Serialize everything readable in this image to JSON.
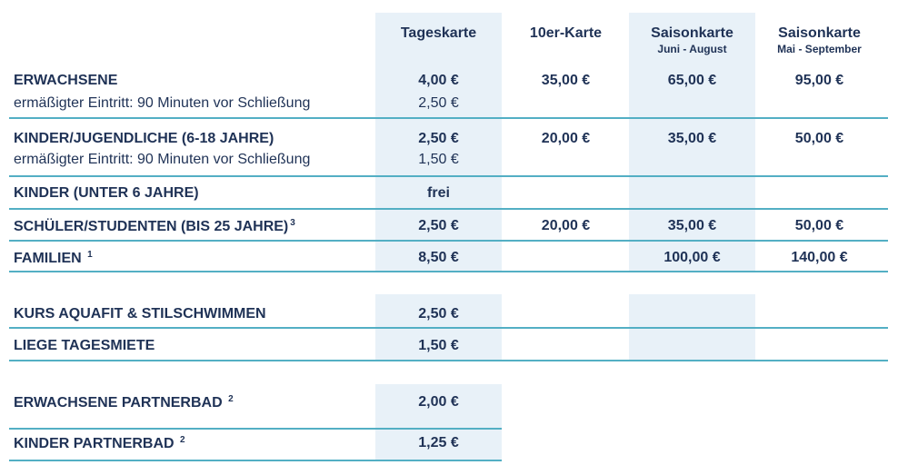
{
  "headers": {
    "tageskarte": "Tageskarte",
    "zehner": "10er-Karte",
    "saison1": "Saisonkarte",
    "saison1_sub": "Juni - August",
    "saison2": "Saisonkarte",
    "saison2_sub": "Mai - September"
  },
  "rows": {
    "erwachsene": {
      "label": "ERWACHSENE",
      "sub_label": "ermäßigter Eintritt: 90 Minuten vor Schließung",
      "tages": "4,00 €",
      "tages_reduced": "2,50 €",
      "zehner": "35,00 €",
      "saison1": "65,00 €",
      "saison2": "95,00 €"
    },
    "kinder_jugend": {
      "label": "KINDER/JUGENDLICHE (6-18 JAHRE)",
      "sub_label": "ermäßigter Eintritt: 90 Minuten vor Schließung",
      "tages": "2,50 €",
      "tages_reduced": "1,50 €",
      "zehner": "20,00 €",
      "saison1": "35,00 €",
      "saison2": "50,00 €"
    },
    "kinder_u6": {
      "label": "KINDER (UNTER 6 JAHRE)",
      "tages": "frei"
    },
    "schueler": {
      "label": "SCHÜLER/STUDENTEN (BIS 25 JAHRE)",
      "footnote": "3",
      "tages": "2,50 €",
      "zehner": "20,00 €",
      "saison1": "35,00 €",
      "saison2": "50,00 €"
    },
    "familien": {
      "label": "FAMILIEN",
      "footnote": "1",
      "tages": "8,50 €",
      "saison1": "100,00 €",
      "saison2": "140,00 €"
    },
    "kurs": {
      "label": "KURS AQUAFIT & STILSCHWIMMEN",
      "tages": "2,50 €"
    },
    "liege": {
      "label": "LIEGE TAGESMIETE",
      "tages": "1,50 €"
    },
    "erw_partner": {
      "label": "ERWACHSENE PARTNERBAD",
      "footnote": "2",
      "tages": "2,00 €"
    },
    "kinder_partner": {
      "label": "KINDER PARTNERBAD",
      "footnote": "2",
      "tages": "1,25 €"
    }
  }
}
